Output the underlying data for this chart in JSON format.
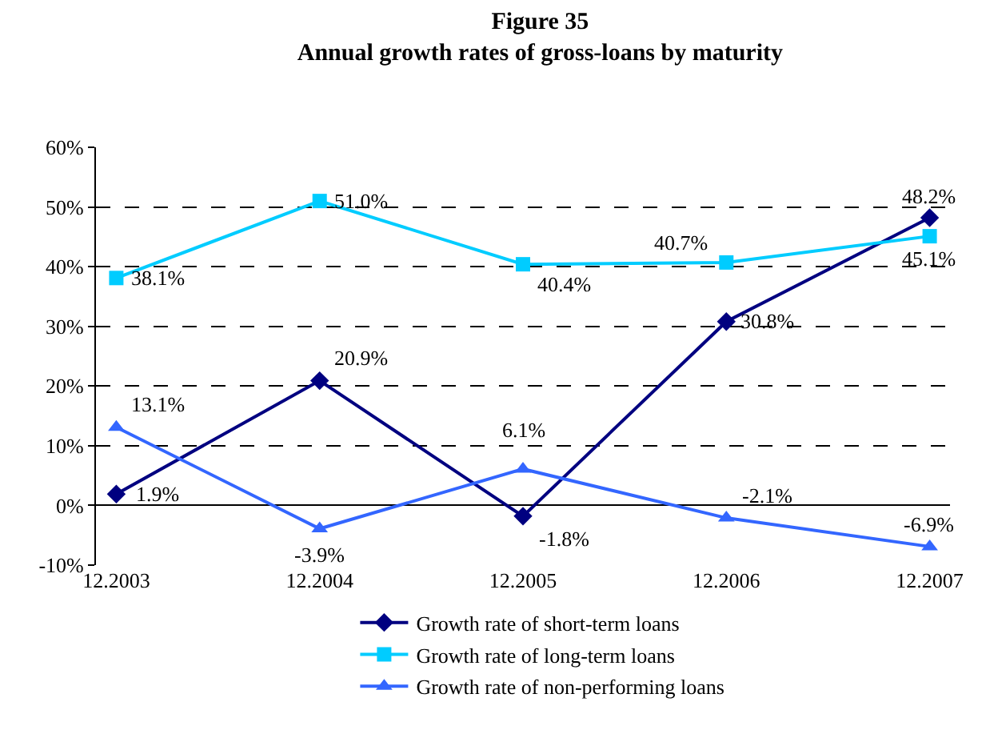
{
  "chart_data": {
    "type": "line",
    "title": "Figure 35",
    "subtitle": "Annual growth rates of gross-loans by maturity",
    "categories": [
      "12.2003",
      "12.2004",
      "12.2005",
      "12.2006",
      "12.2007"
    ],
    "series": [
      {
        "name": "Growth rate of short-term loans",
        "color": "#000080",
        "marker": "diamond",
        "values": [
          1.9,
          20.9,
          -1.8,
          30.8,
          48.2
        ],
        "value_labels": [
          "1.9%",
          "20.9%",
          "-1.8%",
          "30.8%",
          "48.2%"
        ]
      },
      {
        "name": "Growth rate of long-term loans",
        "color": "#00ccff",
        "marker": "square",
        "values": [
          38.1,
          51.0,
          40.4,
          40.7,
          45.1
        ],
        "value_labels": [
          "38.1%",
          "51.0%",
          "40.4%",
          "40.7%",
          "45.1%"
        ]
      },
      {
        "name": "Growth rate of non-performing loans",
        "color": "#3366ff",
        "marker": "triangle",
        "values": [
          13.1,
          -3.9,
          6.1,
          -2.1,
          -6.9
        ],
        "value_labels": [
          "13.1%",
          "-3.9%",
          "6.1%",
          "-2.1%",
          "-6.9%"
        ]
      }
    ],
    "ylim": [
      -10,
      60
    ],
    "yticks": [
      {
        "value": -10,
        "label": "-10%"
      },
      {
        "value": 0,
        "label": "0%"
      },
      {
        "value": 10,
        "label": "10%"
      },
      {
        "value": 20,
        "label": "20%"
      },
      {
        "value": 30,
        "label": "30%"
      },
      {
        "value": 40,
        "label": "40%"
      },
      {
        "value": 50,
        "label": "50%"
      },
      {
        "value": 60,
        "label": "60%"
      }
    ],
    "grid": "y",
    "legend": "bottom"
  }
}
